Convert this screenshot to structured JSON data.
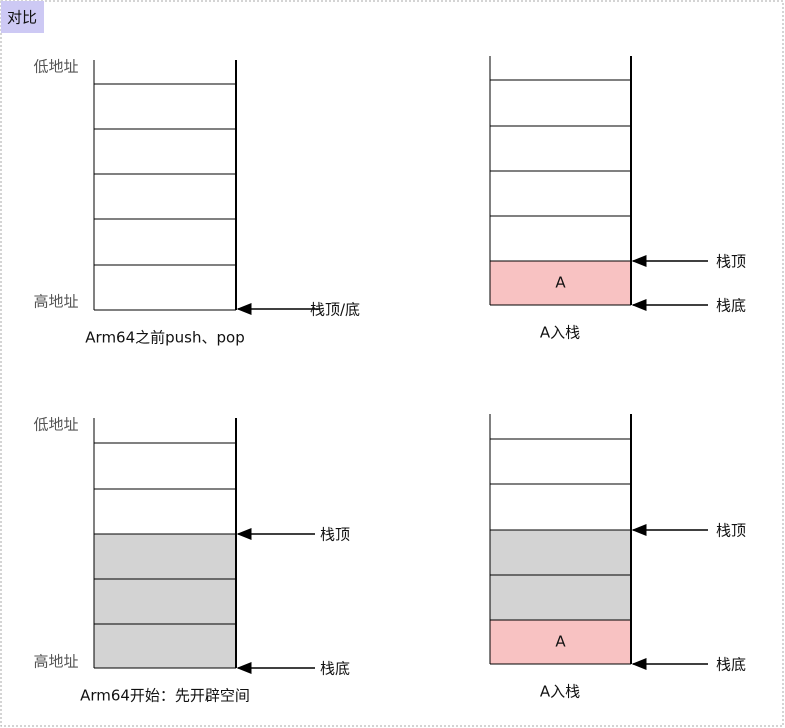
{
  "tag": "对比",
  "panels": [
    {
      "low_label": "低地址",
      "high_label": "高地址",
      "pointers": [
        "栈顶/底"
      ],
      "caption": "Arm64之前push、pop"
    },
    {
      "cell_label": "A",
      "pointers": [
        "栈顶",
        "栈底"
      ],
      "caption": "A入栈"
    },
    {
      "low_label": "低地址",
      "high_label": "高地址",
      "pointers": [
        "栈顶",
        "栈底"
      ],
      "caption": "Arm64开始：先开辟空间"
    },
    {
      "cell_label": "A",
      "pointers": [
        "栈顶",
        "栈底"
      ],
      "caption": "A入栈"
    }
  ]
}
